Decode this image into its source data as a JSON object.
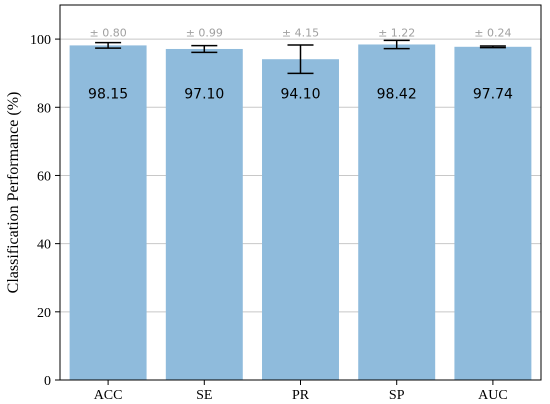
{
  "chart_data": {
    "type": "bar",
    "categories": [
      "ACC",
      "SE",
      "PR",
      "SP",
      "AUC"
    ],
    "values": [
      98.15,
      97.1,
      94.1,
      98.42,
      97.74
    ],
    "errors": [
      0.8,
      0.99,
      4.15,
      1.22,
      0.24
    ],
    "value_labels": [
      "98.15",
      "97.10",
      "94.10",
      "98.42",
      "97.74"
    ],
    "error_labels": [
      "± 0.80",
      "± 0.99",
      "± 4.15",
      "± 1.22",
      "± 0.24"
    ],
    "ylabel": "Classification Performance (%)",
    "xlabel": "",
    "ylim": [
      0,
      110
    ],
    "yticks": [
      0,
      20,
      40,
      60,
      80,
      100
    ],
    "grid": "horizontal",
    "bar_color": "#8fbbdc",
    "error_color": "#000000",
    "error_label_color": "#a0a0a0"
  }
}
